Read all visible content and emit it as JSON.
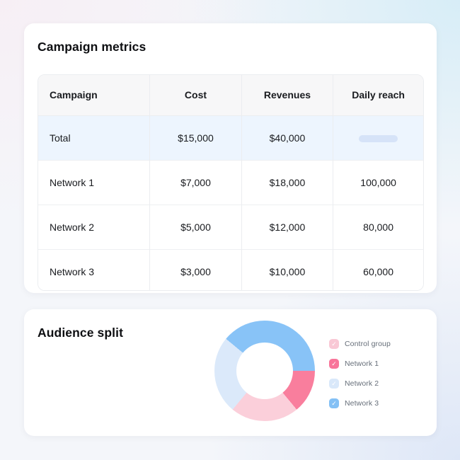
{
  "metrics": {
    "title": "Campaign metrics",
    "columns": [
      "Campaign",
      "Cost",
      "Revenues",
      "Daily reach"
    ],
    "rows": [
      {
        "campaign": "Total",
        "cost": "$15,000",
        "revenues": "$40,000",
        "daily_reach": ""
      },
      {
        "campaign": "Network 1",
        "cost": "$7,000",
        "revenues": "$18,000",
        "daily_reach": "100,000"
      },
      {
        "campaign": "Network 2",
        "cost": "$5,000",
        "revenues": "$12,000",
        "daily_reach": "80,000"
      },
      {
        "campaign": "Network 3",
        "cost": "$3,000",
        "revenues": "$10,000",
        "daily_reach": "60,000"
      }
    ],
    "total_row_highlight_color": "#edf5fe",
    "placeholder_pill_color": "#d6e3f8"
  },
  "audience": {
    "title": "Audience split",
    "legend": [
      {
        "label": "Control group",
        "color": "#f9c8d5",
        "checked": true
      },
      {
        "label": "Network 1",
        "color": "#f8759a",
        "checked": true
      },
      {
        "label": "Network 2",
        "color": "#d9e8fa",
        "checked": true
      },
      {
        "label": "Network 3",
        "color": "#83c0f5",
        "checked": true
      }
    ],
    "check_glyph": "✓"
  },
  "chart_data": {
    "type": "pie",
    "title": "Audience split",
    "donut": true,
    "legend_position": "right",
    "start_angle_deg": 90,
    "slices_draw_order": [
      "Network 1",
      "Control group",
      "Network 2",
      "Network 3"
    ],
    "series": [
      {
        "name": "Control group",
        "value_pct": 22,
        "color": "#fbcfda"
      },
      {
        "name": "Network 1",
        "value_pct": 14,
        "color": "#f97e9d"
      },
      {
        "name": "Network 2",
        "value_pct": 25,
        "color": "#dbe9fa"
      },
      {
        "name": "Network 3",
        "value_pct": 39,
        "color": "#88c3f7"
      }
    ]
  }
}
